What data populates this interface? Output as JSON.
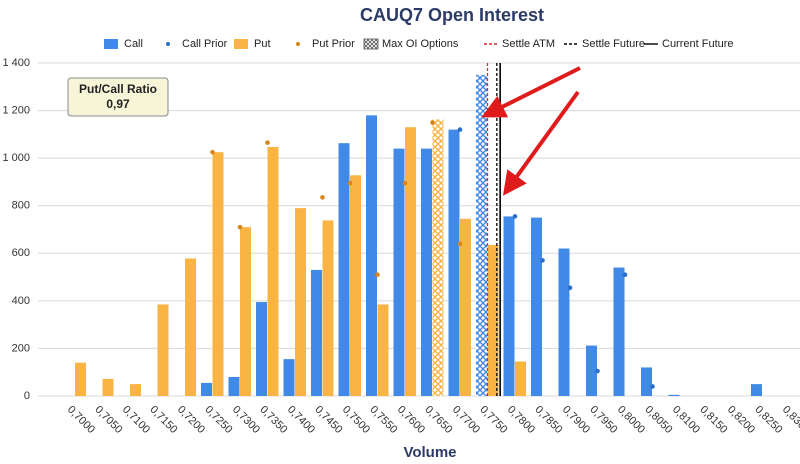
{
  "chart_data": {
    "type": "bar",
    "title": "CAUQ7 Open Interest",
    "x_label": "Volume",
    "categories": [
      "0,7000",
      "0,7050",
      "0,7100",
      "0,7150",
      "0,7200",
      "0,7250",
      "0,7300",
      "0,7350",
      "0,7400",
      "0,7450",
      "0,7500",
      "0,7550",
      "0,7600",
      "0,7650",
      "0,7700",
      "0,7750",
      "0,7800",
      "0,7850",
      "0,7900",
      "0,7950",
      "0,8000",
      "0,8050",
      "0,8100",
      "0,8150",
      "0,8200",
      "0,8250",
      "0,8300"
    ],
    "series": [
      {
        "name": "Call",
        "kind": "bar",
        "color": "#4189e6",
        "hatched_index": 15,
        "values": [
          0,
          0,
          0,
          0,
          0,
          55,
          80,
          395,
          155,
          530,
          1063,
          1180,
          1040,
          1040,
          1120,
          1350,
          755,
          750,
          620,
          212,
          540,
          120,
          5,
          0,
          0,
          50,
          0
        ]
      },
      {
        "name": "Call Prior",
        "kind": "dot",
        "color": "#2a6fc9",
        "values": [
          null,
          null,
          null,
          null,
          null,
          null,
          null,
          null,
          null,
          null,
          null,
          null,
          null,
          null,
          1120,
          null,
          755,
          570,
          455,
          105,
          510,
          40,
          null,
          null,
          null,
          null,
          null
        ]
      },
      {
        "name": "Put",
        "kind": "bar",
        "color": "#f9b444",
        "hatched_index": 13,
        "values": [
          140,
          72,
          50,
          385,
          578,
          1025,
          710,
          1047,
          790,
          738,
          928,
          385,
          1130,
          1163,
          745,
          635,
          145,
          0,
          0,
          0,
          0,
          0,
          0,
          0,
          0,
          0,
          0
        ]
      },
      {
        "name": "Put Prior",
        "kind": "dot",
        "color": "#d9841c",
        "values": [
          null,
          null,
          null,
          null,
          null,
          1025,
          710,
          1065,
          null,
          835,
          895,
          510,
          895,
          1150,
          640,
          null,
          null,
          null,
          null,
          null,
          null,
          null,
          null,
          null,
          null,
          null,
          null
        ]
      }
    ],
    "max_oi_label": "Max OI Options",
    "lines": [
      {
        "name": "Settle ATM",
        "color": "#e3282b",
        "style": "dashed",
        "x": 0.775
      },
      {
        "name": "Settle Future",
        "color": "#000000",
        "style": "dashed",
        "x": 0.7767
      },
      {
        "name": "Current Future",
        "color": "#000000",
        "style": "solid",
        "x": 0.7773
      }
    ],
    "annotation": {
      "title": "Put/Call Ratio",
      "text": "0,97"
    },
    "ylim": [
      0,
      1400
    ],
    "yticks": [
      0,
      200,
      400,
      600,
      800,
      {
        "value": 1000,
        "label": "1 000"
      },
      {
        "value": 1200,
        "label": "1 200"
      },
      {
        "value": 1400,
        "label": "1 400"
      }
    ],
    "grid": true
  }
}
